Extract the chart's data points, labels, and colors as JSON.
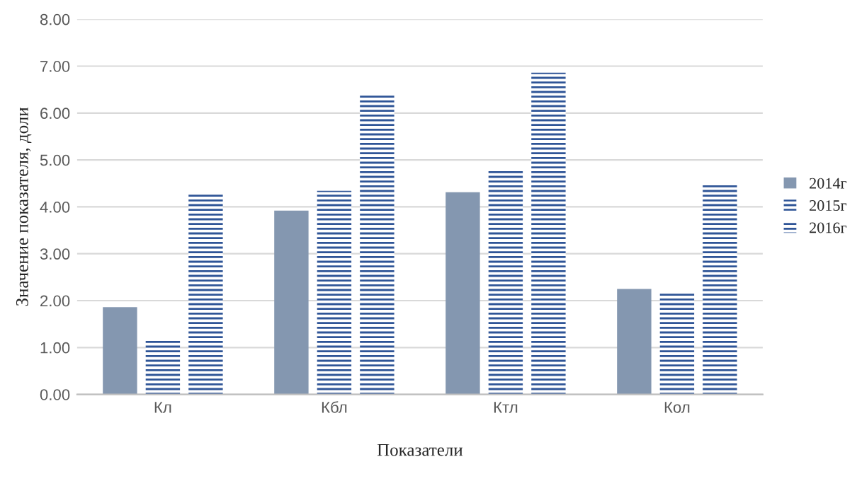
{
  "chart_data": {
    "type": "bar",
    "xlabel": "Показатели",
    "ylabel": "Значение показателя, доли",
    "categories": [
      "Кл",
      "Кбл",
      "Ктл",
      "Кол"
    ],
    "series": [
      {
        "name": "2014г",
        "color": "#8497b0",
        "values": [
          1.86,
          3.92,
          4.31,
          2.25
        ]
      },
      {
        "name": "2015г",
        "color": "#2f5597",
        "values": [
          1.2,
          4.34,
          4.76,
          2.19
        ]
      },
      {
        "name": "2016г",
        "color": "#2f5597",
        "values": [
          4.28,
          6.41,
          6.86,
          4.52
        ]
      }
    ],
    "ylim": [
      0,
      8
    ],
    "yticks": [
      {
        "value": 0,
        "label": "0.00"
      },
      {
        "value": 1,
        "label": "1.00"
      },
      {
        "value": 2,
        "label": "2.00"
      },
      {
        "value": 3,
        "label": "3.00"
      },
      {
        "value": 4,
        "label": "4.00"
      },
      {
        "value": 5,
        "label": "5.00"
      },
      {
        "value": 6,
        "label": "6.00"
      },
      {
        "value": 7,
        "label": "7.00"
      },
      {
        "value": 8,
        "label": "8.00"
      }
    ],
    "grid": "y",
    "legend": "right"
  }
}
